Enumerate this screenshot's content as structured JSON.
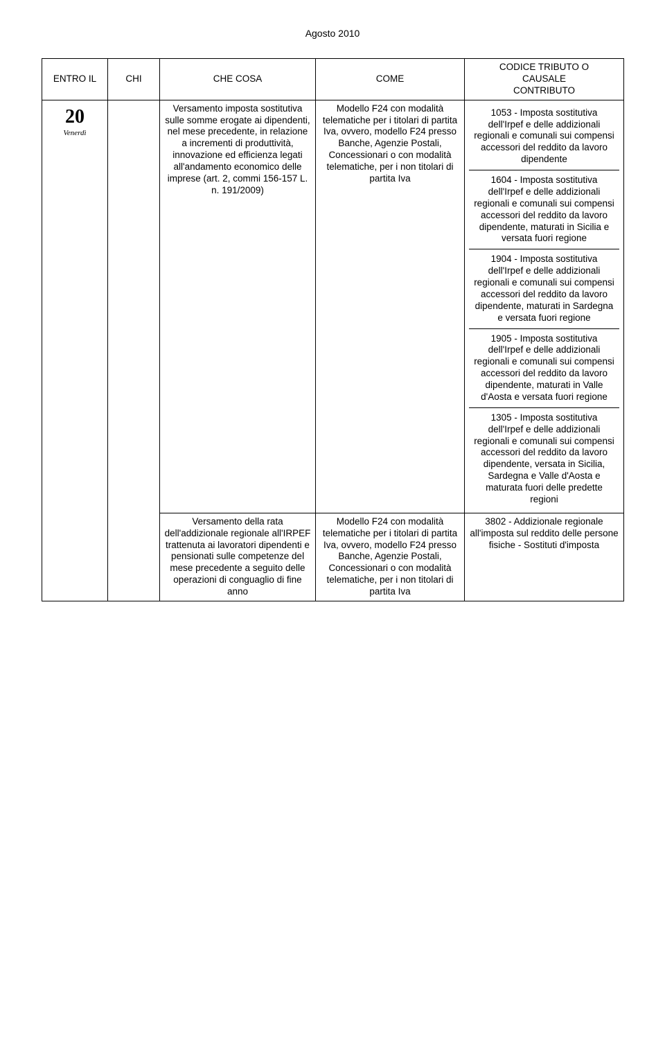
{
  "page": {
    "month_header": "Agosto 2010"
  },
  "headers": {
    "entro": "ENTRO IL",
    "chi": "CHI",
    "cosa": "CHE COSA",
    "come": "COME",
    "codice_l1": "CODICE TRIBUTO O",
    "codice_l2": "CAUSALE",
    "codice_l3": "CONTRIBUTO"
  },
  "row_main": {
    "day": "20",
    "weekday": "Venerdì",
    "che_cosa": "Versamento imposta sostitutiva sulle somme erogate ai dipendenti, nel mese precedente, in relazione a incrementi di produttività, innovazione ed efficienza legati all'andamento economico delle imprese (art. 2, commi 156-157 L. n. 191/2009)",
    "come": "Modello F24 con modalità telematiche per i titolari di partita Iva, ovvero, modello F24 presso Banche, Agenzie Postali, Concessionari o con modalità telematiche, per i non titolari di partita Iva",
    "codici": [
      "1053 - Imposta sostitutiva dell'Irpef e delle addizionali regionali e comunali sui compensi accessori del reddito da lavoro dipendente",
      "1604 - Imposta sostitutiva dell'Irpef e delle addizionali regionali e comunali sui compensi accessori del reddito da lavoro dipendente, maturati in Sicilia e versata fuori regione",
      "1904 - Imposta sostitutiva dell'Irpef e delle addizionali regionali e comunali sui compensi accessori del reddito da lavoro dipendente, maturati in Sardegna e versata fuori regione",
      "1905 - Imposta sostitutiva dell'Irpef e delle addizionali regionali e comunali sui compensi accessori del reddito da lavoro dipendente, maturati in Valle d'Aosta e versata fuori regione",
      "1305 - Imposta sostitutiva dell'Irpef e delle addizionali regionali e comunali sui compensi accessori del reddito da lavoro dipendente, versata in Sicilia, Sardegna e Valle d'Aosta e maturata fuori delle predette regioni"
    ]
  },
  "row_sub": {
    "che_cosa": "Versamento della rata dell'addizionale regionale all'IRPEF trattenuta ai lavoratori dipendenti e pensionati sulle competenze del mese precedente a seguito delle operazioni di conguaglio di fine anno",
    "come": "Modello F24 con modalità telematiche per i titolari di partita Iva, ovvero, modello F24 presso Banche, Agenzie Postali, Concessionari o con modalità telematiche, per i non titolari di partita Iva",
    "codice": "3802 - Addizionale regionale all'imposta sul reddito delle persone fisiche - Sostituti d'imposta"
  },
  "colors": {
    "text": "#000000",
    "border": "#000000",
    "background": "#ffffff"
  }
}
